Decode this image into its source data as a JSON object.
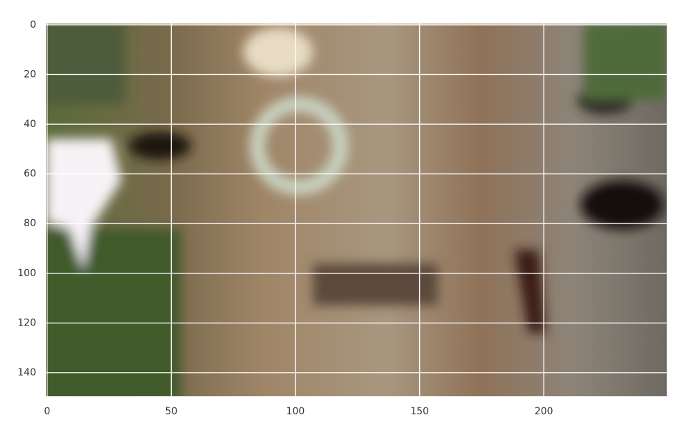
{
  "chart_data": {
    "type": "image",
    "xlim": [
      -0.5,
      249.5
    ],
    "ylim": [
      149.5,
      -0.5
    ],
    "xticks": [
      0,
      50,
      100,
      150,
      200
    ],
    "yticks": [
      0,
      20,
      40,
      60,
      80,
      100,
      120,
      140
    ],
    "grid": true
  }
}
